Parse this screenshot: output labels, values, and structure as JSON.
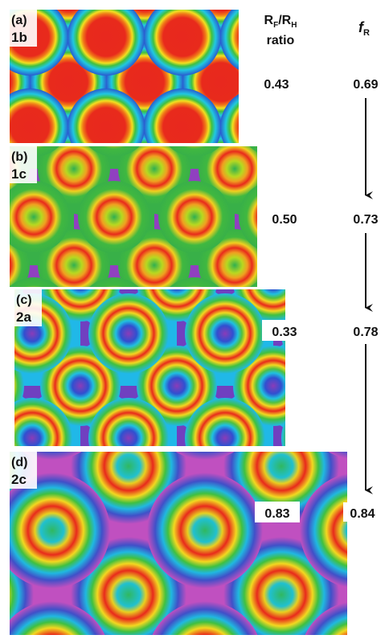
{
  "header": {
    "ratio_title": [
      "R",
      "F",
      "/R",
      "H"
    ],
    "ratio_subtitle": "ratio",
    "fr_title": [
      "f",
      "R"
    ]
  },
  "panels": [
    {
      "label": "(a)",
      "compound": "1b",
      "ratio": "0.43",
      "fr": "0.69"
    },
    {
      "label": "(b)",
      "compound": "1c",
      "ratio": "0.50",
      "fr": "0.73"
    },
    {
      "label": "(c)",
      "compound": "2a",
      "ratio": "0.33",
      "fr": "0.78"
    },
    {
      "label": "(d)",
      "compound": "2c",
      "ratio": "0.83",
      "fr": "0.84"
    }
  ]
}
